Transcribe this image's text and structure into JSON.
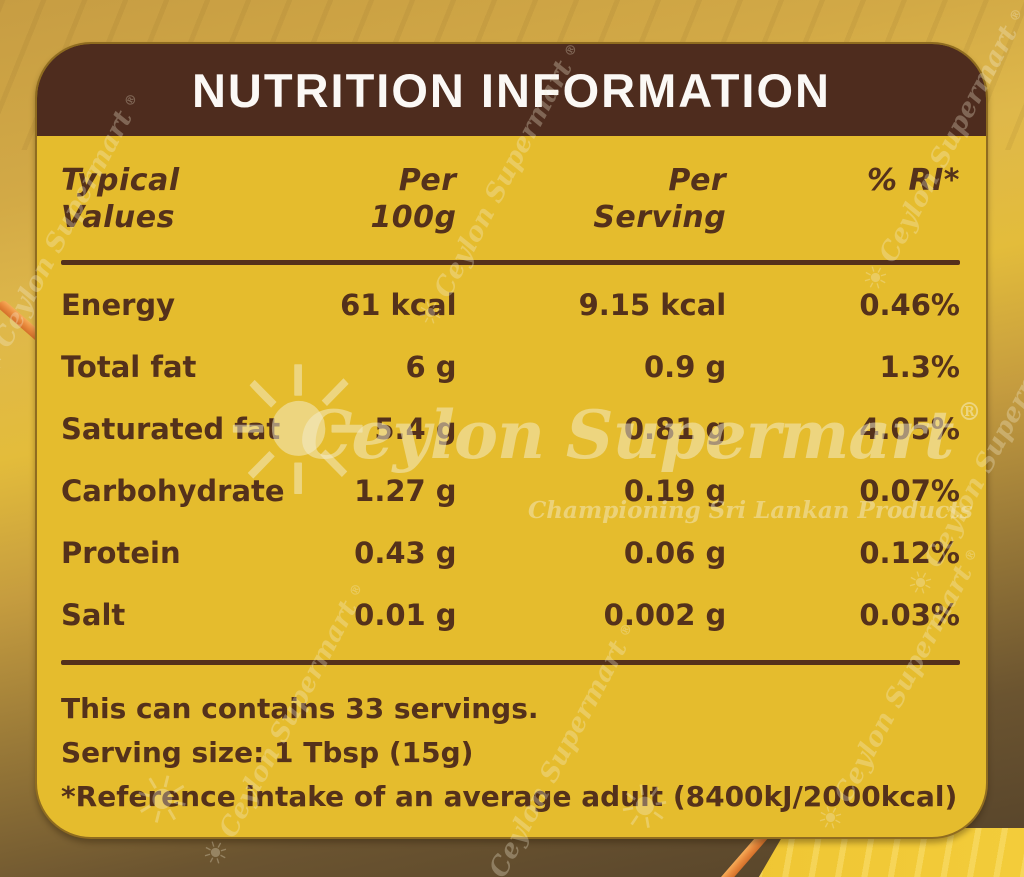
{
  "colors": {
    "bg-gold-top": "#C79D43",
    "bg-gold-mid": "#E3BC3B",
    "bg-brown-deep": "#53412A",
    "bg-yellow-bright": "#EFC634",
    "accent-orange": "#E98A3D",
    "card-yellow": "#E5BC2D",
    "header-brown": "#4E2C1E",
    "text-brown": "#54311B",
    "title-white": "#FBF8F5"
  },
  "panel": {
    "title": "NUTRITION INFORMATION",
    "table": {
      "headers": [
        [
          "Typical",
          "Values"
        ],
        [
          "Per",
          "100g"
        ],
        [
          "Per",
          "Serving"
        ],
        [
          "% RI*",
          ""
        ]
      ],
      "rows": [
        [
          "Energy",
          "61 kcal",
          "9.15 kcal",
          "0.46%"
        ],
        [
          "Total fat",
          "6 g",
          "0.9 g",
          "1.3%"
        ],
        [
          "Saturated fat",
          "5.4 g",
          "0.81 g",
          "4.05%"
        ],
        [
          "Carbohydrate",
          "1.27 g",
          "0.19 g",
          "0.07%"
        ],
        [
          "Protein",
          "0.43 g",
          "0.06 g",
          "0.12%"
        ],
        [
          "Salt",
          "0.01 g",
          "0.002 g",
          "0.03%"
        ]
      ]
    },
    "footnotes": [
      "This can contains 33 servings.",
      "Serving size: 1 Tbsp (15g)",
      "*Reference intake of an average adult (8400kJ/2000kcal)"
    ]
  },
  "watermark": {
    "brand": "Ceylon Supermart",
    "registered": "®",
    "tagline": "Championing Sri Lankan Products",
    "sun_glyph": "☀"
  }
}
